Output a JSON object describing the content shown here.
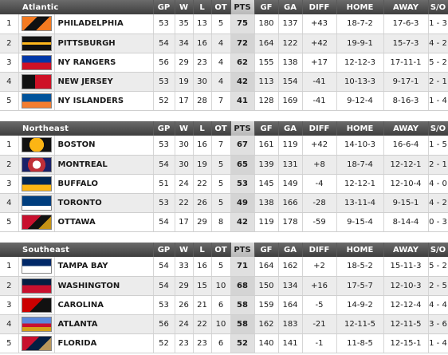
{
  "headers": {
    "gp": "GP",
    "w": "W",
    "l": "L",
    "ot": "OT",
    "pts": "PTS",
    "gf": "GF",
    "ga": "GA",
    "diff": "DIFF",
    "home": "HOME",
    "away": "AWAY",
    "so": "S/O"
  },
  "divisions": [
    {
      "name": "Atlantic",
      "teams": [
        {
          "rank": "1",
          "logo": "philadelphia-flyers-logo",
          "name": "PHILADELPHIA",
          "gp": "53",
          "w": "35",
          "l": "13",
          "ot": "5",
          "pts": "75",
          "gf": "180",
          "ga": "137",
          "diff": "+43",
          "home": "18-7-2",
          "away": "17-6-3",
          "so": "1 - 3"
        },
        {
          "rank": "2",
          "logo": "pittsburgh-penguins-logo",
          "name": "PITTSBURGH",
          "gp": "54",
          "w": "34",
          "l": "16",
          "ot": "4",
          "pts": "72",
          "gf": "164",
          "ga": "122",
          "diff": "+42",
          "home": "19-9-1",
          "away": "15-7-3",
          "so": "4 - 2"
        },
        {
          "rank": "3",
          "logo": "new-york-rangers-logo",
          "name": "NY RANGERS",
          "gp": "56",
          "w": "29",
          "l": "23",
          "ot": "4",
          "pts": "62",
          "gf": "155",
          "ga": "138",
          "diff": "+17",
          "home": "12-12-3",
          "away": "17-11-1",
          "so": "5 - 2"
        },
        {
          "rank": "4",
          "logo": "new-jersey-devils-logo",
          "name": "NEW JERSEY",
          "gp": "53",
          "w": "19",
          "l": "30",
          "ot": "4",
          "pts": "42",
          "gf": "113",
          "ga": "154",
          "diff": "-41",
          "home": "10-13-3",
          "away": "9-17-1",
          "so": "2 - 1"
        },
        {
          "rank": "5",
          "logo": "new-york-islanders-logo",
          "name": "NY ISLANDERS",
          "gp": "52",
          "w": "17",
          "l": "28",
          "ot": "7",
          "pts": "41",
          "gf": "128",
          "ga": "169",
          "diff": "-41",
          "home": "9-12-4",
          "away": "8-16-3",
          "so": "1 - 4"
        }
      ]
    },
    {
      "name": "Northeast",
      "teams": [
        {
          "rank": "1",
          "logo": "boston-bruins-logo",
          "name": "BOSTON",
          "gp": "53",
          "w": "30",
          "l": "16",
          "ot": "7",
          "pts": "67",
          "gf": "161",
          "ga": "119",
          "diff": "+42",
          "home": "14-10-3",
          "away": "16-6-4",
          "so": "1 - 5"
        },
        {
          "rank": "2",
          "logo": "montreal-canadiens-logo",
          "name": "MONTREAL",
          "gp": "54",
          "w": "30",
          "l": "19",
          "ot": "5",
          "pts": "65",
          "gf": "139",
          "ga": "131",
          "diff": "+8",
          "home": "18-7-4",
          "away": "12-12-1",
          "so": "2 - 1"
        },
        {
          "rank": "3",
          "logo": "buffalo-sabres-logo",
          "name": "BUFFALO",
          "gp": "51",
          "w": "24",
          "l": "22",
          "ot": "5",
          "pts": "53",
          "gf": "145",
          "ga": "149",
          "diff": "-4",
          "home": "12-12-1",
          "away": "12-10-4",
          "so": "4 - 0"
        },
        {
          "rank": "4",
          "logo": "toronto-maple-leafs-logo",
          "name": "TORONTO",
          "gp": "53",
          "w": "22",
          "l": "26",
          "ot": "5",
          "pts": "49",
          "gf": "138",
          "ga": "166",
          "diff": "-28",
          "home": "13-11-4",
          "away": "9-15-1",
          "so": "4 - 2"
        },
        {
          "rank": "5",
          "logo": "ottawa-senators-logo",
          "name": "OTTAWA",
          "gp": "54",
          "w": "17",
          "l": "29",
          "ot": "8",
          "pts": "42",
          "gf": "119",
          "ga": "178",
          "diff": "-59",
          "home": "9-15-4",
          "away": "8-14-4",
          "so": "0 - 3"
        }
      ]
    },
    {
      "name": "Southeast",
      "teams": [
        {
          "rank": "1",
          "logo": "tampa-bay-lightning-logo",
          "name": "TAMPA BAY",
          "gp": "54",
          "w": "33",
          "l": "16",
          "ot": "5",
          "pts": "71",
          "gf": "164",
          "ga": "162",
          "diff": "+2",
          "home": "18-5-2",
          "away": "15-11-3",
          "so": "5 - 2"
        },
        {
          "rank": "2",
          "logo": "washington-capitals-logo",
          "name": "WASHINGTON",
          "gp": "54",
          "w": "29",
          "l": "15",
          "ot": "10",
          "pts": "68",
          "gf": "150",
          "ga": "134",
          "diff": "+16",
          "home": "17-5-7",
          "away": "12-10-3",
          "so": "2 - 5"
        },
        {
          "rank": "3",
          "logo": "carolina-hurricanes-logo",
          "name": "CAROLINA",
          "gp": "53",
          "w": "26",
          "l": "21",
          "ot": "6",
          "pts": "58",
          "gf": "159",
          "ga": "164",
          "diff": "-5",
          "home": "14-9-2",
          "away": "12-12-4",
          "so": "4 - 4"
        },
        {
          "rank": "4",
          "logo": "atlanta-thrashers-logo",
          "name": "ATLANTA",
          "gp": "56",
          "w": "24",
          "l": "22",
          "ot": "10",
          "pts": "58",
          "gf": "162",
          "ga": "183",
          "diff": "-21",
          "home": "12-11-5",
          "away": "12-11-5",
          "so": "3 - 6"
        },
        {
          "rank": "5",
          "logo": "florida-panthers-logo",
          "name": "FLORIDA",
          "gp": "52",
          "w": "23",
          "l": "23",
          "ot": "6",
          "pts": "52",
          "gf": "140",
          "ga": "141",
          "diff": "-1",
          "home": "11-8-5",
          "away": "12-15-1",
          "so": "1 - 4"
        }
      ]
    }
  ]
}
